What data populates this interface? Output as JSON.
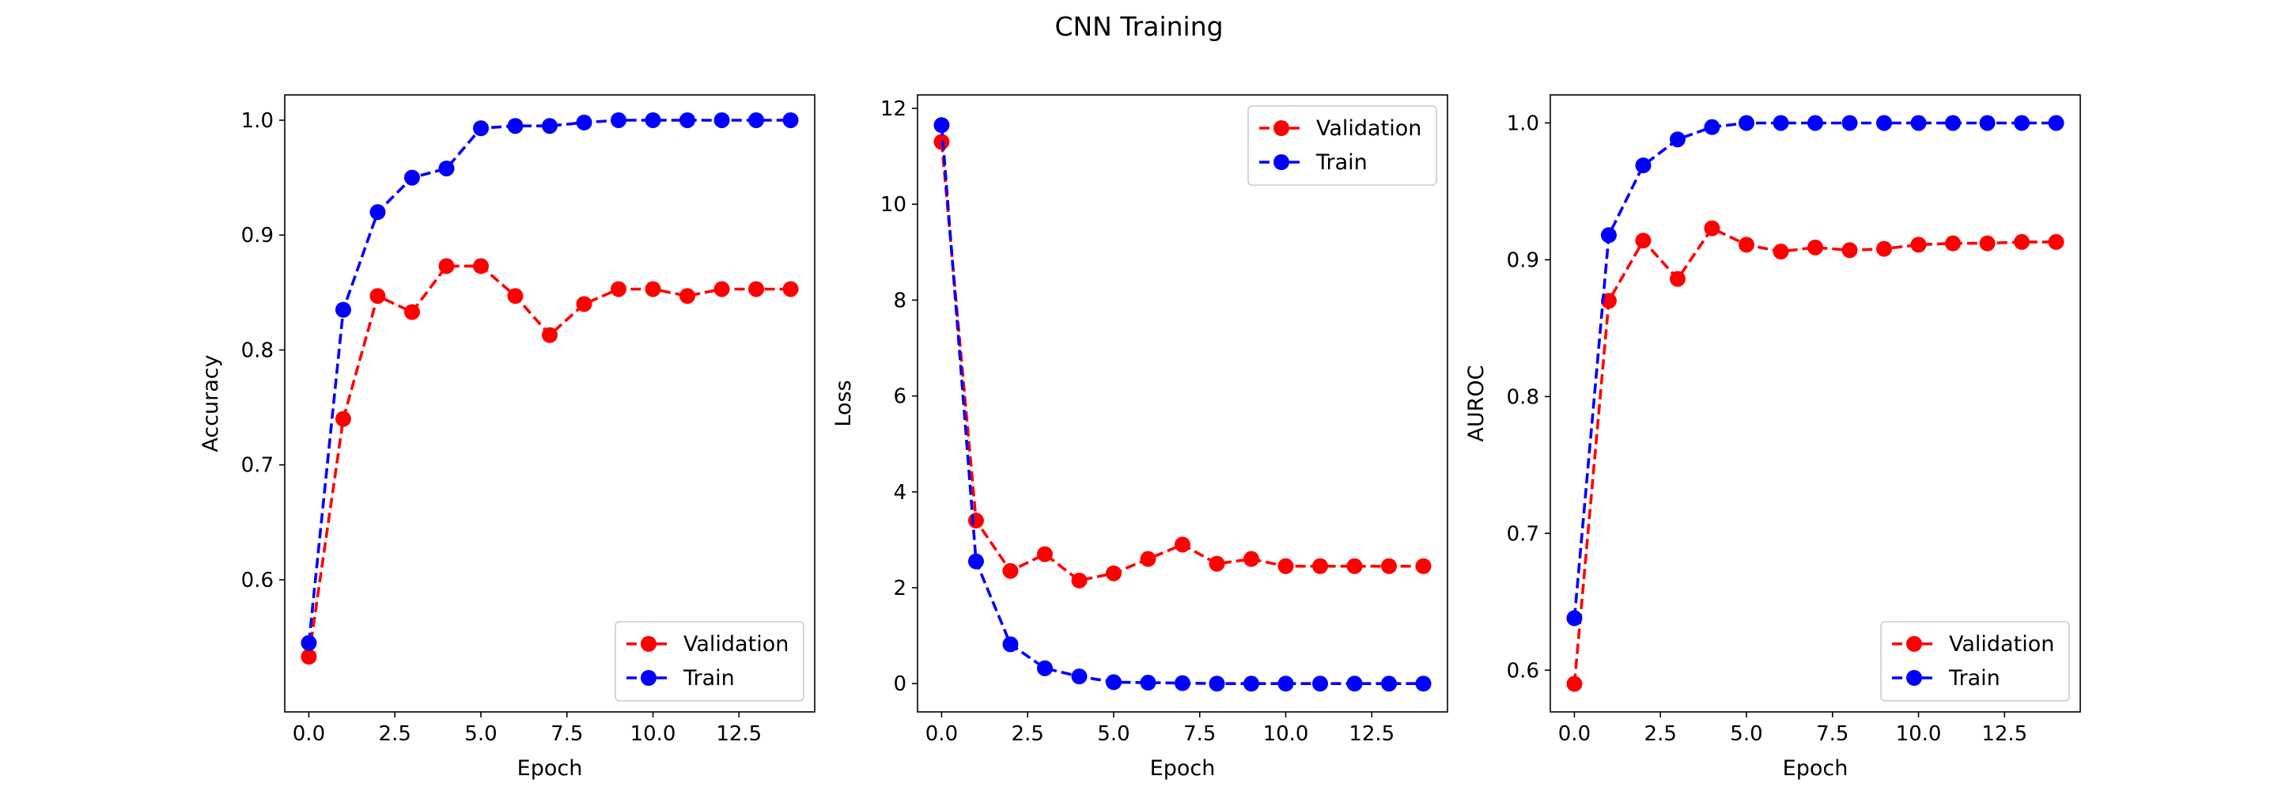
{
  "figure": {
    "title": "CNN Training"
  },
  "chart_data": [
    {
      "type": "line",
      "xlabel": "Epoch",
      "ylabel": "Accuracy",
      "x": [
        0,
        1,
        2,
        3,
        4,
        5,
        6,
        7,
        8,
        9,
        10,
        11,
        12,
        13,
        14
      ],
      "xlim": [
        -0.7,
        14.7
      ],
      "ylim": [
        0.485,
        1.022
      ],
      "xticks": [
        0.0,
        2.5,
        5.0,
        7.5,
        10.0,
        12.5
      ],
      "yticks": [
        0.6,
        0.7,
        0.8,
        0.9,
        1.0
      ],
      "xtick_labels": [
        "0.0",
        "2.5",
        "5.0",
        "7.5",
        "10.0",
        "12.5"
      ],
      "ytick_labels": [
        "0.6",
        "0.7",
        "0.8",
        "0.9",
        "1.0"
      ],
      "legend": "lower-right",
      "grid": false,
      "series": [
        {
          "name": "Validation",
          "color": "#ff0000",
          "linestyle": "dashed",
          "marker": "circle",
          "values": [
            0.533,
            0.74,
            0.847,
            0.833,
            0.873,
            0.873,
            0.847,
            0.813,
            0.84,
            0.853,
            0.853,
            0.847,
            0.853,
            0.853,
            0.853
          ]
        },
        {
          "name": "Train",
          "color": "#0000ff",
          "linestyle": "dashed",
          "marker": "circle",
          "values": [
            0.545,
            0.835,
            0.92,
            0.95,
            0.958,
            0.993,
            0.995,
            0.995,
            0.998,
            1.0,
            1.0,
            1.0,
            1.0,
            1.0,
            1.0
          ]
        }
      ]
    },
    {
      "type": "line",
      "xlabel": "Epoch",
      "ylabel": "Loss",
      "x": [
        0,
        1,
        2,
        3,
        4,
        5,
        6,
        7,
        8,
        9,
        10,
        11,
        12,
        13,
        14
      ],
      "xlim": [
        -0.7,
        14.7
      ],
      "ylim": [
        -0.59,
        12.28
      ],
      "xticks": [
        0.0,
        2.5,
        5.0,
        7.5,
        10.0,
        12.5
      ],
      "yticks": [
        0,
        2,
        4,
        6,
        8,
        10,
        12
      ],
      "xtick_labels": [
        "0.0",
        "2.5",
        "5.0",
        "7.5",
        "10.0",
        "12.5"
      ],
      "ytick_labels": [
        "0",
        "2",
        "4",
        "6",
        "8",
        "10",
        "12"
      ],
      "legend": "top-right",
      "grid": false,
      "series": [
        {
          "name": "Validation",
          "color": "#ff0000",
          "linestyle": "dashed",
          "marker": "circle",
          "values": [
            11.3,
            3.4,
            2.35,
            2.7,
            2.15,
            2.3,
            2.6,
            2.9,
            2.5,
            2.6,
            2.45,
            2.45,
            2.45,
            2.45,
            2.45
          ]
        },
        {
          "name": "Train",
          "color": "#0000ff",
          "linestyle": "dashed",
          "marker": "circle",
          "values": [
            11.65,
            2.55,
            0.82,
            0.32,
            0.15,
            0.03,
            0.02,
            0.01,
            0.0,
            0.0,
            0.0,
            0.0,
            0.0,
            0.0,
            0.0
          ]
        }
      ]
    },
    {
      "type": "line",
      "xlabel": "Epoch",
      "ylabel": "AUROC",
      "x": [
        0,
        1,
        2,
        3,
        4,
        5,
        6,
        7,
        8,
        9,
        10,
        11,
        12,
        13,
        14
      ],
      "xlim": [
        -0.7,
        14.7
      ],
      "ylim": [
        0.5695,
        1.0205
      ],
      "xticks": [
        0.0,
        2.5,
        5.0,
        7.5,
        10.0,
        12.5
      ],
      "yticks": [
        0.6,
        0.7,
        0.8,
        0.9,
        1.0
      ],
      "xtick_labels": [
        "0.0",
        "2.5",
        "5.0",
        "7.5",
        "10.0",
        "12.5"
      ],
      "ytick_labels": [
        "0.6",
        "0.7",
        "0.8",
        "0.9",
        "1.0"
      ],
      "legend": "lower-right",
      "grid": false,
      "series": [
        {
          "name": "Validation",
          "color": "#ff0000",
          "linestyle": "dashed",
          "marker": "circle",
          "values": [
            0.59,
            0.87,
            0.914,
            0.886,
            0.923,
            0.911,
            0.906,
            0.909,
            0.907,
            0.908,
            0.911,
            0.912,
            0.912,
            0.913,
            0.913
          ]
        },
        {
          "name": "Train",
          "color": "#0000ff",
          "linestyle": "dashed",
          "marker": "circle",
          "values": [
            0.638,
            0.918,
            0.969,
            0.988,
            0.997,
            1.0,
            1.0,
            1.0,
            1.0,
            1.0,
            1.0,
            1.0,
            1.0,
            1.0,
            1.0
          ]
        }
      ]
    }
  ]
}
